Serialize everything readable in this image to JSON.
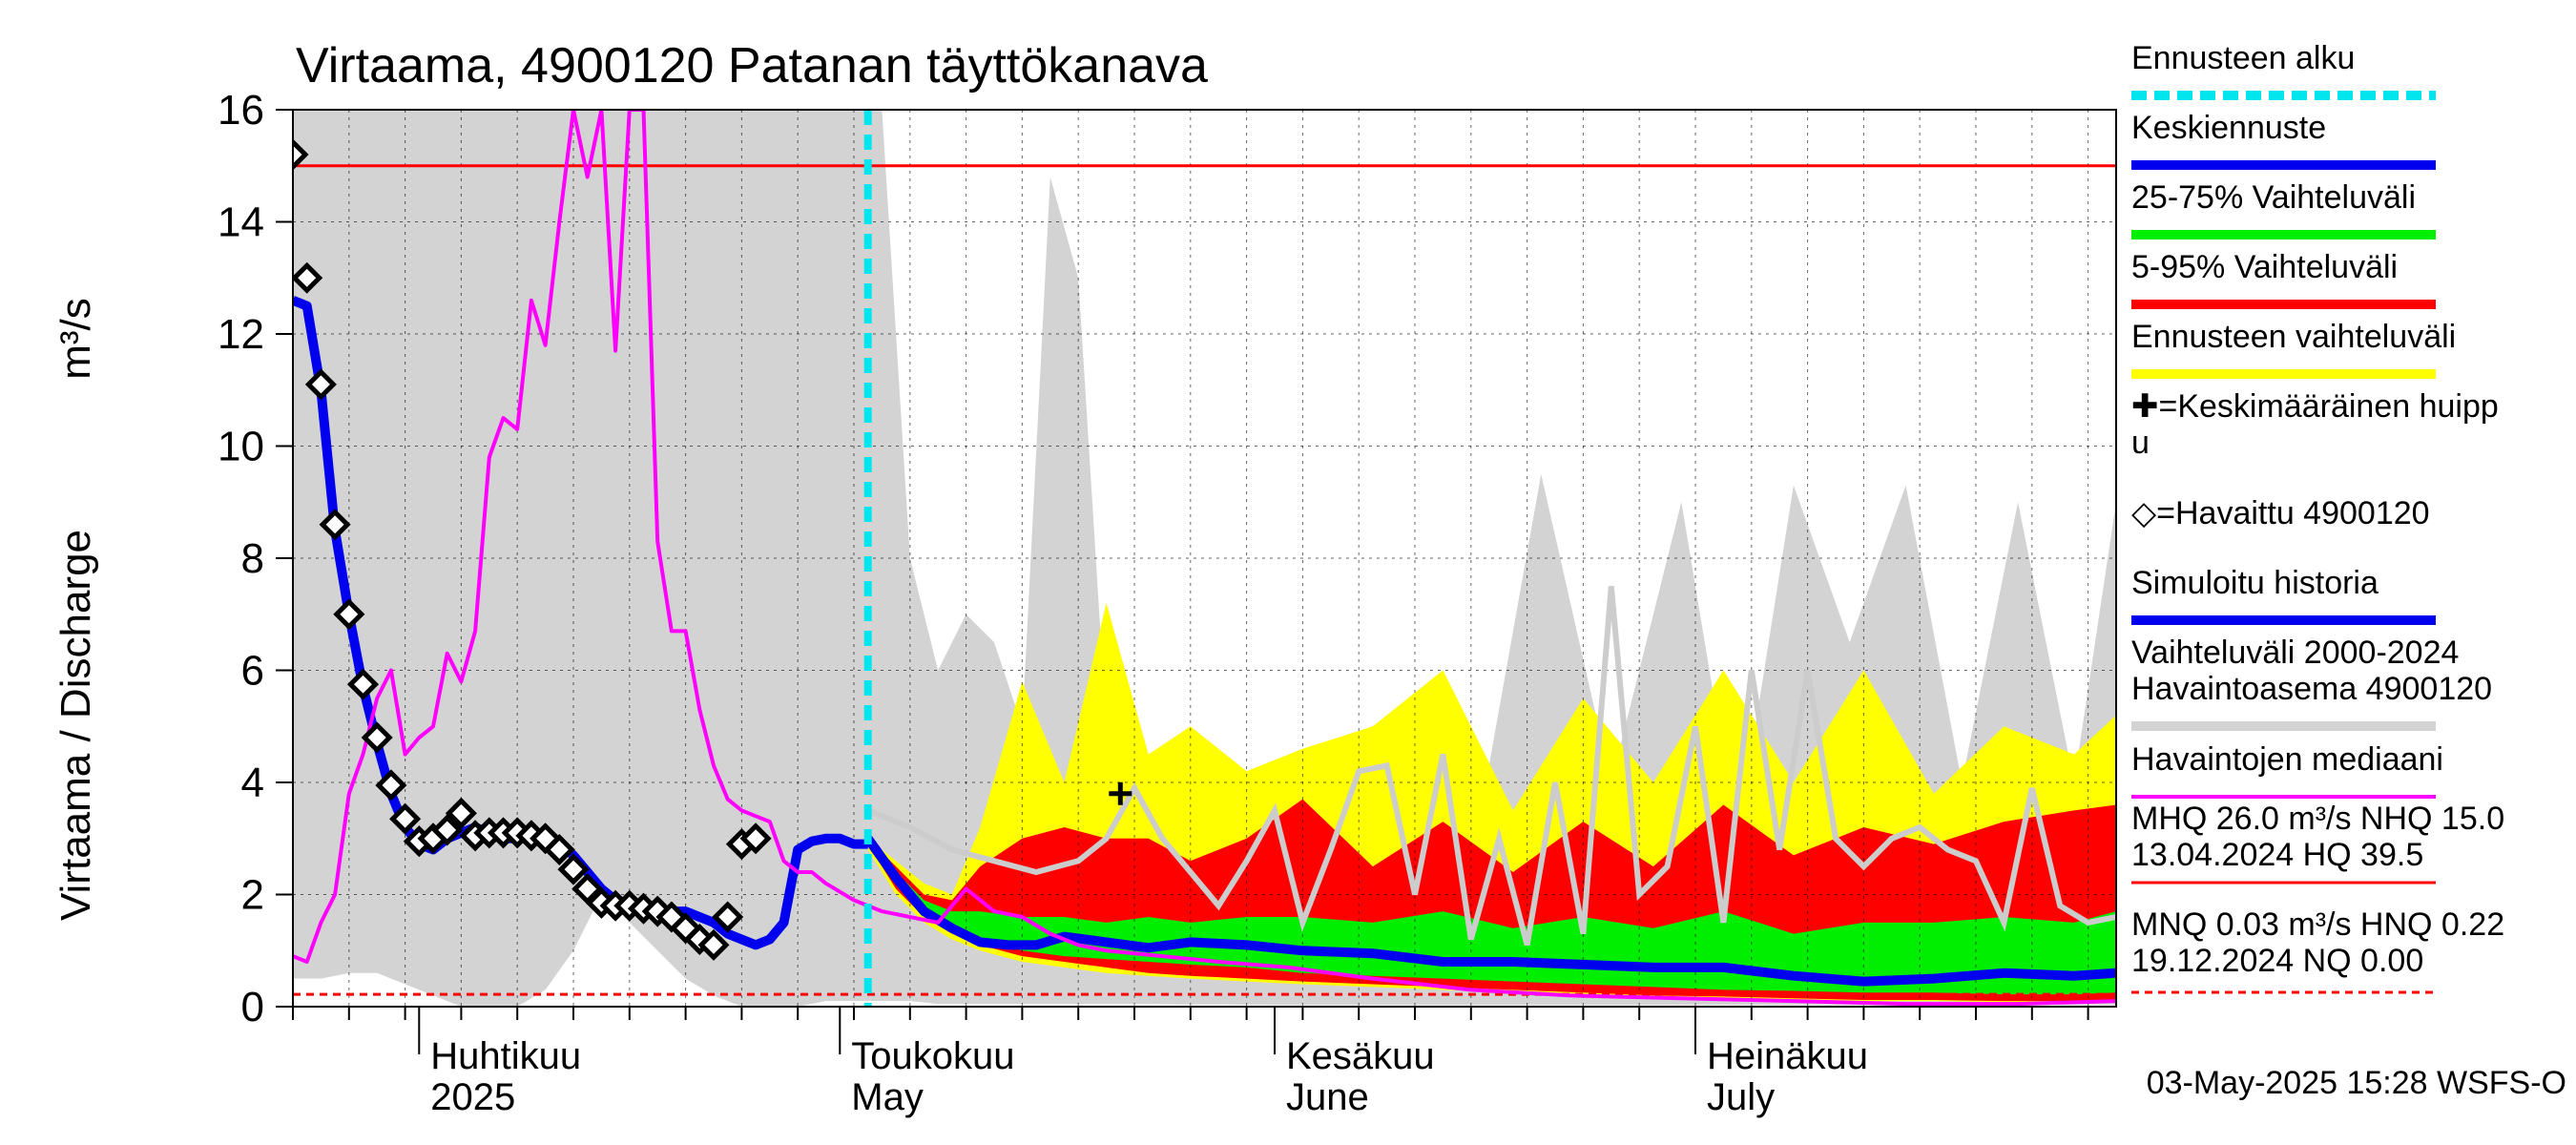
{
  "chart_data": {
    "type": "line",
    "title": "Virtaama, 4900120 Patanan täyttökanava",
    "ylabel": "Virtaama / Discharge",
    "yunit": "m³/s",
    "ylim": [
      0,
      16
    ],
    "yticks": [
      "0",
      "2",
      "4",
      "6",
      "8",
      "10",
      "12",
      "14",
      "16"
    ],
    "x_start": "2025-03-23",
    "x_end": "2025-07-31",
    "forecast_start": "2025-05-03",
    "months": [
      {
        "label": "Huhtikuu",
        "sub": "2025",
        "date": "2025-04-01"
      },
      {
        "label": "Toukokuu",
        "sub": "May",
        "date": "2025-05-01"
      },
      {
        "label": "Kesäkuu",
        "sub": "June",
        "date": "2025-06-01"
      },
      {
        "label": "Heinäkuu",
        "sub": "July",
        "date": "2025-07-01"
      }
    ],
    "reference_lines": [
      {
        "name": "NHQ",
        "value": 15.0,
        "color": "#ff0000",
        "style": "solid"
      },
      {
        "name": "HNQ",
        "value": 0.22,
        "color": "#ff0000",
        "style": "dashed"
      }
    ],
    "mean_peak": {
      "date": "2025-05-21",
      "value": 3.8
    },
    "series": [
      {
        "name": "Vaihteluväli 2000-2024 Havaintoasema 4900120",
        "kind": "band",
        "color": "#d3d3d3",
        "x": [
          "2025-03-23",
          "2025-03-25",
          "2025-03-27",
          "2025-03-29",
          "2025-03-31",
          "2025-04-02",
          "2025-04-04",
          "2025-04-06",
          "2025-04-08",
          "2025-04-10",
          "2025-04-12",
          "2025-04-14",
          "2025-04-16",
          "2025-04-18",
          "2025-04-20",
          "2025-04-22",
          "2025-04-24",
          "2025-04-26",
          "2025-04-28",
          "2025-04-30",
          "2025-05-02",
          "2025-05-04",
          "2025-05-06",
          "2025-05-08",
          "2025-05-10",
          "2025-05-12",
          "2025-05-14",
          "2025-05-16",
          "2025-05-18",
          "2025-05-20",
          "2025-05-22",
          "2025-05-25",
          "2025-05-28",
          "2025-06-01",
          "2025-06-05",
          "2025-06-10",
          "2025-06-15",
          "2025-06-20",
          "2025-06-25",
          "2025-06-30",
          "2025-07-04",
          "2025-07-08",
          "2025-07-12",
          "2025-07-16",
          "2025-07-20",
          "2025-07-24",
          "2025-07-28",
          "2025-07-31"
        ],
        "low": [
          0.5,
          0.5,
          0.6,
          0.6,
          0.4,
          0.2,
          0.0,
          0.0,
          0.0,
          0.3,
          1.0,
          2.0,
          1.5,
          1.0,
          0.5,
          0.2,
          0.0,
          0.0,
          0.0,
          0.1,
          0.1,
          0.1,
          0.1,
          0.05,
          0.05,
          0.05,
          0.05,
          0.05,
          0.05,
          0.05,
          0.05,
          0.04,
          0.04,
          0.03,
          0.03,
          0.03,
          0.03,
          0.03,
          0.03,
          0.03,
          0.03,
          0.03,
          0.03,
          0.03,
          0.03,
          0.03,
          0.03,
          0.03
        ],
        "high": [
          16,
          16,
          16,
          16,
          16,
          16,
          16,
          16,
          16,
          16,
          16,
          16,
          16,
          16,
          16,
          16,
          16,
          16,
          16,
          16,
          16,
          16,
          8.0,
          6.0,
          7.0,
          6.5,
          5.0,
          14.8,
          13.0,
          5.0,
          4.2,
          3.8,
          3.5,
          3.5,
          3.2,
          4.0,
          2.5,
          9.5,
          4.0,
          9.0,
          3.0,
          9.3,
          6.5,
          9.3,
          4.0,
          9.0,
          4.0,
          9.0
        ]
      },
      {
        "name": "Ennusteen vaihteluväli",
        "kind": "band",
        "color": "#ffff00",
        "x": [
          "2025-05-03",
          "2025-05-05",
          "2025-05-07",
          "2025-05-09",
          "2025-05-11",
          "2025-05-14",
          "2025-05-17",
          "2025-05-20",
          "2025-05-23",
          "2025-05-26",
          "2025-05-30",
          "2025-06-03",
          "2025-06-08",
          "2025-06-13",
          "2025-06-18",
          "2025-06-23",
          "2025-06-28",
          "2025-07-03",
          "2025-07-08",
          "2025-07-13",
          "2025-07-18",
          "2025-07-23",
          "2025-07-28",
          "2025-07-31"
        ],
        "low": [
          2.8,
          2.0,
          1.5,
          1.2,
          1.0,
          0.8,
          0.7,
          0.6,
          0.55,
          0.5,
          0.45,
          0.4,
          0.35,
          0.3,
          0.25,
          0.2,
          0.18,
          0.15,
          0.12,
          0.1,
          0.1,
          0.08,
          0.08,
          0.08
        ],
        "high": [
          3.0,
          2.6,
          2.2,
          2.0,
          3.2,
          5.8,
          4.0,
          7.2,
          4.5,
          5.0,
          4.2,
          4.6,
          5.0,
          6.0,
          3.5,
          5.5,
          4.0,
          6.0,
          4.0,
          6.0,
          3.8,
          5.0,
          4.5,
          5.2
        ]
      },
      {
        "name": "5-95% Vaihteluväli",
        "kind": "band",
        "color": "#ff0000",
        "x": [
          "2025-05-03",
          "2025-05-05",
          "2025-05-07",
          "2025-05-09",
          "2025-05-11",
          "2025-05-14",
          "2025-05-17",
          "2025-05-20",
          "2025-05-23",
          "2025-05-26",
          "2025-05-30",
          "2025-06-03",
          "2025-06-08",
          "2025-06-13",
          "2025-06-18",
          "2025-06-23",
          "2025-06-28",
          "2025-07-03",
          "2025-07-08",
          "2025-07-13",
          "2025-07-18",
          "2025-07-23",
          "2025-07-28",
          "2025-07-31"
        ],
        "low": [
          2.9,
          2.1,
          1.6,
          1.3,
          1.1,
          0.9,
          0.8,
          0.7,
          0.6,
          0.55,
          0.5,
          0.45,
          0.4,
          0.35,
          0.3,
          0.25,
          0.2,
          0.18,
          0.15,
          0.12,
          0.12,
          0.1,
          0.1,
          0.1
        ],
        "high": [
          3.0,
          2.5,
          2.0,
          1.9,
          2.5,
          3.0,
          3.2,
          3.0,
          3.0,
          2.6,
          3.0,
          3.7,
          2.5,
          3.3,
          2.4,
          3.3,
          2.5,
          3.6,
          2.7,
          3.2,
          2.9,
          3.3,
          3.5,
          3.6
        ]
      },
      {
        "name": "25-75% Vaihteluväli",
        "kind": "band",
        "color": "#00ee00",
        "x": [
          "2025-05-03",
          "2025-05-05",
          "2025-05-07",
          "2025-05-09",
          "2025-05-11",
          "2025-05-14",
          "2025-05-17",
          "2025-05-20",
          "2025-05-23",
          "2025-05-26",
          "2025-05-30",
          "2025-06-03",
          "2025-06-08",
          "2025-06-13",
          "2025-06-18",
          "2025-06-23",
          "2025-06-28",
          "2025-07-03",
          "2025-07-08",
          "2025-07-13",
          "2025-07-18",
          "2025-07-23",
          "2025-07-28",
          "2025-07-31"
        ],
        "low": [
          2.95,
          2.2,
          1.7,
          1.4,
          1.2,
          1.0,
          0.9,
          0.85,
          0.8,
          0.75,
          0.7,
          0.6,
          0.55,
          0.5,
          0.45,
          0.4,
          0.35,
          0.3,
          0.28,
          0.25,
          0.25,
          0.22,
          0.22,
          0.25
        ],
        "high": [
          3.0,
          2.4,
          1.9,
          1.7,
          1.7,
          1.6,
          1.6,
          1.5,
          1.6,
          1.5,
          1.6,
          1.6,
          1.5,
          1.7,
          1.4,
          1.6,
          1.4,
          1.7,
          1.3,
          1.5,
          1.5,
          1.6,
          1.5,
          1.7
        ]
      },
      {
        "name": "Ennusteen vaihteluväli (ala)",
        "kind": "hidden",
        "color": "#ffff00",
        "x": [],
        "values": []
      },
      {
        "name": "Keskiennuste",
        "kind": "line",
        "color": "#0000ee",
        "x": [
          "2025-05-03",
          "2025-05-05",
          "2025-05-07",
          "2025-05-09",
          "2025-05-11",
          "2025-05-13",
          "2025-05-15",
          "2025-05-17",
          "2025-05-20",
          "2025-05-23",
          "2025-05-26",
          "2025-05-30",
          "2025-06-03",
          "2025-06-08",
          "2025-06-13",
          "2025-06-18",
          "2025-06-23",
          "2025-06-28",
          "2025-07-03",
          "2025-07-08",
          "2025-07-13",
          "2025-07-18",
          "2025-07-23",
          "2025-07-28",
          "2025-07-31"
        ],
        "values": [
          3.0,
          2.3,
          1.7,
          1.4,
          1.15,
          1.1,
          1.1,
          1.25,
          1.15,
          1.05,
          1.15,
          1.1,
          1.0,
          0.95,
          0.8,
          0.8,
          0.75,
          0.7,
          0.7,
          0.55,
          0.45,
          0.5,
          0.6,
          0.55,
          0.6
        ]
      },
      {
        "name": "Simuloitu historia",
        "kind": "line",
        "color": "#0000ee",
        "x": [
          "2025-03-23",
          "2025-03-24",
          "2025-03-25",
          "2025-03-26",
          "2025-03-27",
          "2025-03-28",
          "2025-03-29",
          "2025-03-30",
          "2025-03-31",
          "2025-04-01",
          "2025-04-02",
          "2025-04-03",
          "2025-04-04",
          "2025-04-05",
          "2025-04-06",
          "2025-04-07",
          "2025-04-08",
          "2025-04-09",
          "2025-04-10",
          "2025-04-11",
          "2025-04-12",
          "2025-04-13",
          "2025-04-14",
          "2025-04-15",
          "2025-04-16",
          "2025-04-17",
          "2025-04-18",
          "2025-04-19",
          "2025-04-20",
          "2025-04-21",
          "2025-04-22",
          "2025-04-23",
          "2025-04-24",
          "2025-04-25",
          "2025-04-26",
          "2025-04-27",
          "2025-04-28",
          "2025-04-29",
          "2025-04-30",
          "2025-05-01",
          "2025-05-02",
          "2025-05-03"
        ],
        "values": [
          12.6,
          12.5,
          11.0,
          8.5,
          7.0,
          5.7,
          4.7,
          3.8,
          3.2,
          2.9,
          2.8,
          3.0,
          3.1,
          3.2,
          3.1,
          3.0,
          3.0,
          3.0,
          3.0,
          2.9,
          2.7,
          2.4,
          2.1,
          1.9,
          1.8,
          1.75,
          1.7,
          1.7,
          1.7,
          1.6,
          1.5,
          1.3,
          1.2,
          1.1,
          1.2,
          1.5,
          2.8,
          2.95,
          3.0,
          3.0,
          2.9,
          2.9
        ]
      },
      {
        "name": "Havaittu 4900120",
        "kind": "markers",
        "color": "#000000",
        "x": [
          "2025-03-23",
          "2025-03-24",
          "2025-03-25",
          "2025-03-26",
          "2025-03-27",
          "2025-03-28",
          "2025-03-29",
          "2025-03-30",
          "2025-03-31",
          "2025-04-01",
          "2025-04-02",
          "2025-04-03",
          "2025-04-04",
          "2025-04-05",
          "2025-04-06",
          "2025-04-07",
          "2025-04-08",
          "2025-04-09",
          "2025-04-10",
          "2025-04-11",
          "2025-04-12",
          "2025-04-13",
          "2025-04-14",
          "2025-04-15",
          "2025-04-16",
          "2025-04-17",
          "2025-04-18",
          "2025-04-19",
          "2025-04-20",
          "2025-04-21",
          "2025-04-22",
          "2025-04-23",
          "2025-04-24",
          "2025-04-25"
        ],
        "values": [
          15.2,
          13.0,
          11.1,
          8.6,
          7.0,
          5.75,
          4.8,
          3.95,
          3.35,
          2.95,
          3.0,
          3.15,
          3.45,
          3.05,
          3.1,
          3.1,
          3.1,
          3.05,
          3.0,
          2.8,
          2.45,
          2.1,
          1.85,
          1.8,
          1.8,
          1.75,
          1.7,
          1.6,
          1.4,
          1.2,
          1.1,
          1.6,
          2.9,
          3.0
        ]
      },
      {
        "name": "Havaintojen mediaani",
        "kind": "line",
        "color": "#ff00ff",
        "x": [
          "2025-03-23",
          "2025-03-24",
          "2025-03-25",
          "2025-03-26",
          "2025-03-27",
          "2025-03-28",
          "2025-03-29",
          "2025-03-30",
          "2025-03-31",
          "2025-04-01",
          "2025-04-02",
          "2025-04-03",
          "2025-04-04",
          "2025-04-05",
          "2025-04-06",
          "2025-04-07",
          "2025-04-08",
          "2025-04-09",
          "2025-04-10",
          "2025-04-11",
          "2025-04-12",
          "2025-04-13",
          "2025-04-14",
          "2025-04-15",
          "2025-04-16",
          "2025-04-17",
          "2025-04-18",
          "2025-04-19",
          "2025-04-20",
          "2025-04-21",
          "2025-04-22",
          "2025-04-23",
          "2025-04-24",
          "2025-04-25",
          "2025-04-26",
          "2025-04-27",
          "2025-04-28",
          "2025-04-29",
          "2025-04-30",
          "2025-05-02",
          "2025-05-04",
          "2025-05-06",
          "2025-05-08",
          "2025-05-10",
          "2025-05-12",
          "2025-05-14",
          "2025-05-16",
          "2025-05-18",
          "2025-05-20",
          "2025-05-24",
          "2025-05-28",
          "2025-06-02",
          "2025-06-08",
          "2025-06-15",
          "2025-06-22",
          "2025-06-30",
          "2025-07-08",
          "2025-07-16",
          "2025-07-24",
          "2025-07-31"
        ],
        "values": [
          0.9,
          0.8,
          1.5,
          2.0,
          3.8,
          4.5,
          5.5,
          6.0,
          4.5,
          4.8,
          5.0,
          6.3,
          5.8,
          6.7,
          9.8,
          10.5,
          10.3,
          12.6,
          11.8,
          14.0,
          16.0,
          14.8,
          16.0,
          11.7,
          16.0,
          16.0,
          8.3,
          6.7,
          6.7,
          5.3,
          4.3,
          3.7,
          3.5,
          3.4,
          3.3,
          2.6,
          2.4,
          2.4,
          2.2,
          1.9,
          1.7,
          1.6,
          1.5,
          2.1,
          1.7,
          1.6,
          1.3,
          1.1,
          1.0,
          0.9,
          0.8,
          0.7,
          0.5,
          0.3,
          0.2,
          0.15,
          0.1,
          0.05,
          0.05,
          0.1
        ]
      },
      {
        "name": "Vaihteluväli median (gray line)",
        "kind": "hidden",
        "color": "#d3d3d3",
        "x": [],
        "values": []
      }
    ],
    "gray_line": {
      "color": "#cccccc",
      "x": [
        "2025-05-03",
        "2025-05-06",
        "2025-05-09",
        "2025-05-12",
        "2025-05-15",
        "2025-05-18",
        "2025-05-20",
        "2025-05-22",
        "2025-05-24",
        "2025-05-26",
        "2025-05-28",
        "2025-05-30",
        "2025-06-01",
        "2025-06-03",
        "2025-06-05",
        "2025-06-07",
        "2025-06-09",
        "2025-06-11",
        "2025-06-13",
        "2025-06-15",
        "2025-06-17",
        "2025-06-19",
        "2025-06-21",
        "2025-06-23",
        "2025-06-25",
        "2025-06-27",
        "2025-06-29",
        "2025-07-01",
        "2025-07-03",
        "2025-07-05",
        "2025-07-07",
        "2025-07-09",
        "2025-07-11",
        "2025-07-13",
        "2025-07-15",
        "2025-07-17",
        "2025-07-19",
        "2025-07-21",
        "2025-07-23",
        "2025-07-25",
        "2025-07-27",
        "2025-07-29",
        "2025-07-31"
      ],
      "values": [
        3.5,
        3.2,
        2.8,
        2.6,
        2.4,
        2.6,
        3.0,
        3.9,
        3.0,
        2.4,
        1.8,
        2.6,
        3.5,
        1.5,
        2.8,
        4.2,
        4.3,
        2.0,
        4.5,
        1.2,
        3.0,
        1.1,
        4.0,
        1.3,
        7.5,
        2.0,
        2.5,
        5.0,
        1.5,
        6.0,
        2.8,
        6.0,
        3.0,
        2.5,
        3.0,
        3.2,
        2.8,
        2.6,
        1.5,
        3.9,
        1.8,
        1.5,
        1.6
      ]
    },
    "legend": [
      {
        "label": "Ennusteen alku",
        "swatch": "dashed",
        "color": "#00e5ee"
      },
      {
        "label": "Keskiennuste",
        "swatch": "line",
        "color": "#0000ee"
      },
      {
        "label": "25-75% Vaihteluväli",
        "swatch": "line",
        "color": "#00ee00"
      },
      {
        "label": "5-95% Vaihteluväli",
        "swatch": "line",
        "color": "#ff0000"
      },
      {
        "label": "Ennusteen vaihteluväli",
        "swatch": "line",
        "color": "#ffff00"
      },
      {
        "label": "✚=Keskimääräinen huipp",
        "label2": "u",
        "swatch": "none",
        "color": "#000000"
      },
      {
        "label": "◇=Havaittu 4900120",
        "swatch": "none",
        "color": "#000000"
      },
      {
        "label": "Simuloitu historia",
        "swatch": "line",
        "color": "#0000ee"
      },
      {
        "label": "Vaihteluväli 2000-2024",
        "label2": " Havaintoasema 4900120",
        "swatch": "line",
        "color": "#d3d3d3"
      },
      {
        "label": "Havaintojen mediaani",
        "swatch": "thin",
        "color": "#ff00ff"
      }
    ],
    "stats": {
      "line1": "MHQ 26.0 m³/s NHQ 15.0",
      "line2": "13.04.2024 HQ 39.5",
      "line3": "MNQ 0.03 m³/s HNQ 0.22",
      "line4": "19.12.2024 NQ 0.00"
    },
    "timestamp": "03-May-2025 15:28 WSFS-O"
  }
}
